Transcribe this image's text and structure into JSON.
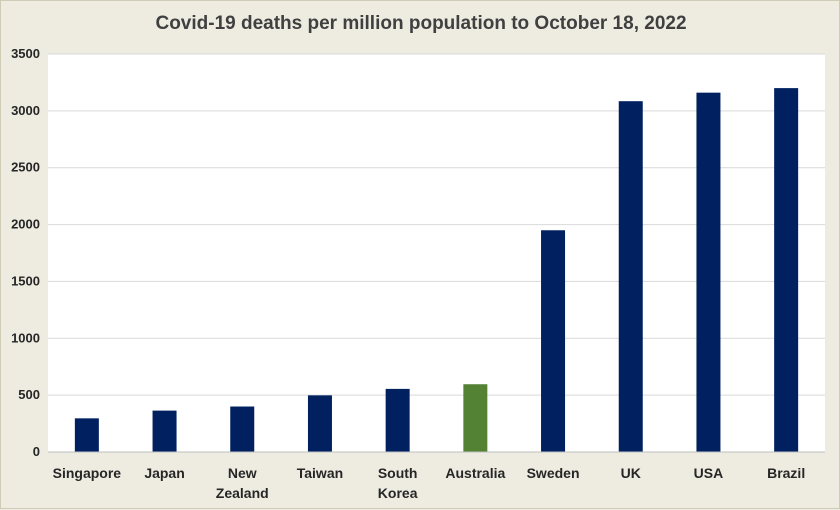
{
  "chart_data": {
    "type": "bar",
    "title": "Covid-19 deaths per million population to October 18, 2022",
    "xlabel": "",
    "ylabel": "",
    "categories": [
      [
        "Singapore"
      ],
      [
        "Japan"
      ],
      [
        "New",
        "Zealand"
      ],
      [
        "Taiwan"
      ],
      [
        "South",
        "Korea"
      ],
      [
        "Australia"
      ],
      [
        "Sweden"
      ],
      [
        "UK"
      ],
      [
        "USA"
      ],
      [
        "Brazil"
      ]
    ],
    "values": [
      296,
      364,
      400,
      498,
      555,
      596,
      1950,
      3085,
      3160,
      3200
    ],
    "bar_colors": [
      "#002060",
      "#002060",
      "#002060",
      "#002060",
      "#002060",
      "#548235",
      "#002060",
      "#002060",
      "#002060",
      "#002060"
    ],
    "ylim": [
      0,
      3500
    ],
    "yticks": [
      0,
      500,
      1000,
      1500,
      2000,
      2500,
      3000,
      3500
    ],
    "grid": true,
    "legend": "none"
  }
}
